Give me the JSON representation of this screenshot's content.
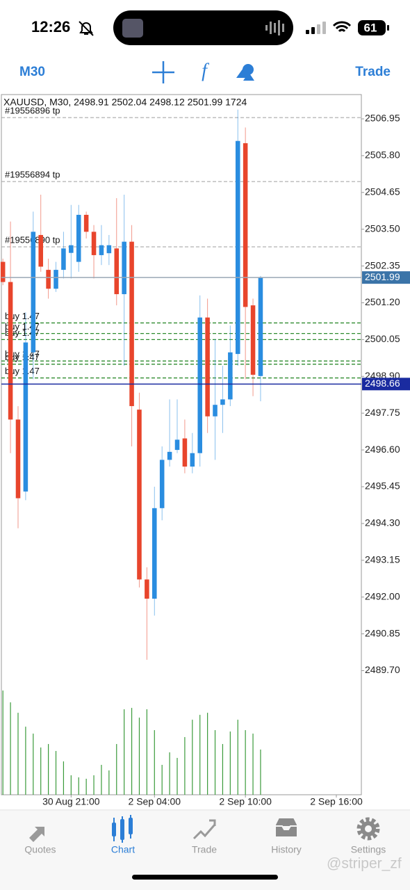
{
  "status_bar": {
    "time": "12:26",
    "battery": "61"
  },
  "toolbar": {
    "timeframe": "M30",
    "trade": "Trade"
  },
  "chart_data": {
    "type": "candlestick",
    "header": "XAUUSD, M30, 2498.91 2502.04 2498.12 2501.99 1724",
    "open": [
      2502.48,
      2501.85,
      2497.55,
      2495.3,
      2499.65,
      2503.32,
      2502.23,
      2501.64,
      2502.23,
      2502.76,
      2502.48,
      2503.95,
      2503.42,
      2502.69,
      2502.75,
      2502.9,
      2501.47,
      2503.11,
      2497.86,
      2492.55,
      2491.95,
      2494.78,
      2496.29,
      2496.6,
      2496.96,
      2496.08,
      2496.5,
      2500.74,
      2497.65,
      2498.01,
      2498.18,
      2499.6,
      2506.19,
      2501.12,
      2498.91
    ],
    "high": [
      2502.58,
      2503.74,
      2497.97,
      2500.9,
      2504.05,
      2504.58,
      2502.58,
      2502.48,
      2503.42,
      2504.26,
      2504.26,
      2504.05,
      2503.63,
      2503.63,
      2503.32,
      2504.47,
      2504.58,
      2503.63,
      2498.39,
      2492.93,
      2495.45,
      2496.71,
      2498.18,
      2498.18,
      2497.55,
      2497.13,
      2501.43,
      2501.33,
      2500.07,
      2499.23,
      2500.49,
      2507.24,
      2506.68,
      2501.33,
      2502.04
    ],
    "low": [
      2501.75,
      2496.5,
      2494.15,
      2495.03,
      2498.81,
      2502.17,
      2501.33,
      2501.54,
      2501.96,
      2501.96,
      2502.17,
      2503.21,
      2501.96,
      2502.38,
      2502.38,
      2501.12,
      2499.23,
      2496.71,
      2492.3,
      2490.04,
      2491.42,
      2494.4,
      2496.08,
      2496.5,
      2495.87,
      2495.87,
      2496.08,
      2497.13,
      2496.29,
      2497.13,
      2497.97,
      2499.23,
      2498.81,
      2498.28,
      2498.12
    ],
    "close": [
      2501.85,
      2497.55,
      2495.09,
      2499.96,
      2503.42,
      2502.33,
      2501.64,
      2502.23,
      2502.9,
      2503.0,
      2503.95,
      2503.42,
      2502.69,
      2503.0,
      2503.0,
      2501.47,
      2503.11,
      2497.97,
      2492.55,
      2491.95,
      2494.78,
      2496.29,
      2496.54,
      2496.92,
      2496.08,
      2496.5,
      2500.74,
      2497.65,
      2498.01,
      2498.18,
      2499.65,
      2506.26,
      2501.07,
      2498.95,
      2501.99
    ],
    "volume": [
      3975,
      3525,
      3127,
      2597,
      2332,
      1802,
      1935,
      1670,
      1272,
      742,
      663,
      610,
      742,
      1140,
      928,
      1935,
      3260,
      3313,
      2942,
      3260,
      2465,
      1140,
      1617,
      1405,
      2200,
      2862,
      3048,
      3127,
      2465,
      1935,
      2412,
      2862,
      2465,
      2332,
      1724
    ],
    "up_color": "#2a8de0",
    "down_color": "#e8452c",
    "volume_color": "#3a9a3a",
    "xlim": [
      -0.2,
      47.3
    ],
    "xticks": [
      {
        "value": 9,
        "label": "30 Aug 21:00"
      },
      {
        "value": 20,
        "label": "2 Sep 04:00"
      },
      {
        "value": 32,
        "label": "2 Sep 10:00"
      },
      {
        "value": 44,
        "label": "2 Sep 16:00"
      }
    ],
    "ylim": [
      2485.82,
      2507.71
    ],
    "yticks": [
      2506.95,
      {
        "value": 2505.8,
        "label": "2505.80"
      },
      2504.65,
      {
        "value": 2503.5,
        "label": "2503.50"
      },
      2502.35,
      {
        "value": 2501.2,
        "label": "2501.20"
      },
      2500.05,
      {
        "value": 2498.9,
        "label": "2498.90"
      },
      2497.75,
      {
        "value": 2496.6,
        "label": "2496.60"
      },
      2495.45,
      {
        "value": 2494.3,
        "label": "2494.30"
      },
      2493.15,
      {
        "value": 2492,
        "label": "2492.00"
      },
      2490.85,
      {
        "value": 2489.7,
        "label": "2489.70"
      }
    ],
    "grid": false,
    "orders": [
      {
        "label": "#19556896 tp",
        "price": 2506.99,
        "color": "#b0b0b0"
      },
      {
        "label": "#19556894 tp",
        "price": 2504.99,
        "color": "#b0b0b0"
      },
      {
        "label": "#19556890 tp",
        "price": 2502.95,
        "color": "#b0b0b0"
      },
      {
        "label": "buy 1.47",
        "price": 2500.57,
        "color": "#2e8b2e"
      },
      {
        "label": "buy 1.47",
        "price": 2500.24,
        "color": "#2e8b2e"
      },
      {
        "label": "buy 1.47",
        "price": 2500.05,
        "color": "#2e8b2e"
      },
      {
        "label": "buy 1.47",
        "price": 2499.38,
        "color": "#2e8b2e"
      },
      {
        "label": "buy 1.47",
        "price": 2499.28,
        "color": "#2e8b2e"
      },
      {
        "label": "buy 1.47",
        "price": 2498.85,
        "color": "#2e8b2e"
      }
    ],
    "price_lines": [
      {
        "price": 2501.99,
        "color": "#9aa7b5",
        "tag_color": "#3b74a8"
      },
      {
        "price": 2498.66,
        "color": "#1a2ba0",
        "tag_color": "#1a2ba0"
      }
    ]
  },
  "tab_bar": {
    "tabs": [
      "Quotes",
      "Chart",
      "Trade",
      "History",
      "Settings"
    ]
  },
  "watermark": "@striper_zf"
}
